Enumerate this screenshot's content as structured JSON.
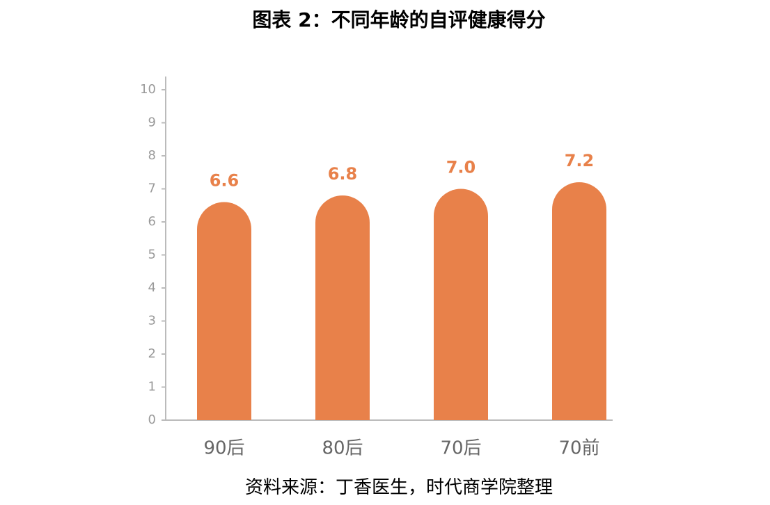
{
  "chart_data": {
    "type": "bar",
    "title": "图表 2：不同年龄的自评健康得分",
    "categories": [
      "90后",
      "80后",
      "70后",
      "70前"
    ],
    "values": [
      6.6,
      6.8,
      7.0,
      7.2
    ],
    "value_labels": [
      "6.6",
      "6.8",
      "7.0",
      "7.2"
    ],
    "color": "#e8814a",
    "ylim": [
      0,
      10
    ],
    "yticks": [
      0,
      1,
      2,
      3,
      4,
      5,
      6,
      7,
      8,
      9,
      10
    ],
    "source": "资料来源：丁香医生，时代商学院整理"
  }
}
